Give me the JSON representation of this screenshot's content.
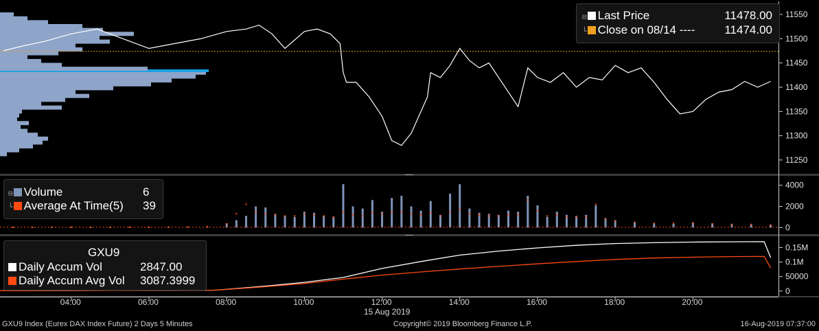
{
  "price_panel": {
    "legend": {
      "last_price_label": "Last Price",
      "last_price_value": "11478.00",
      "close_label": "Close on 08/14 ----",
      "close_value": "11474.00"
    }
  },
  "volume_panel": {
    "legend": {
      "volume_label": "Volume",
      "volume_value": "6",
      "avg_label": "Average At Time(5)",
      "avg_value": "39"
    }
  },
  "accum_panel": {
    "legend": {
      "ticker": "GXU9",
      "daily_label": "Daily Accum Vol",
      "daily_value": "2847.00",
      "avg_label": "Daily Accum Avg Vol",
      "avg_value": "3087.3999"
    }
  },
  "x_axis": {
    "ticks": [
      "04:00",
      "06:00",
      "08:00",
      "10:00",
      "12:00",
      "14:00",
      "16:00",
      "18:00",
      "20:00"
    ],
    "date_label": "15 Aug 2019"
  },
  "footer": {
    "left": "GXU9 Index (Eurex DAX Index Future) 2 Days 5 Minutes",
    "center": "Copyright© 2019 Bloomberg Finance L.P.",
    "right": "16-Aug-2019 07:37:00"
  },
  "colors": {
    "background": "#000000",
    "last_price": "#ffffff",
    "close_line": "#f0a020",
    "volume_bar": "#7f94b8",
    "average": "#ff4a12",
    "profile_bar": "#8ea4c8",
    "profile_highlight": "#1aa0e0"
  },
  "chart_data": [
    {
      "type": "line",
      "title": "Last Price",
      "x": [
        "02:15",
        "02:45",
        "03:20",
        "04:00",
        "04:40",
        "05:20",
        "06:00",
        "06:40",
        "07:20",
        "08:00",
        "08:30",
        "08:50",
        "09:10",
        "09:30",
        "10:00",
        "10:20",
        "10:40",
        "10:55",
        "11:00",
        "11:05",
        "11:20",
        "11:40",
        "12:00",
        "12:15",
        "12:30",
        "12:45",
        "13:00",
        "13:10",
        "13:15",
        "13:30",
        "13:45",
        "14:00",
        "14:15",
        "14:30",
        "14:45",
        "15:00",
        "15:15",
        "15:30",
        "15:45",
        "16:00",
        "16:20",
        "16:40",
        "17:00",
        "17:20",
        "17:40",
        "18:00",
        "18:20",
        "18:40",
        "19:00",
        "19:20",
        "19:40",
        "20:00",
        "20:20",
        "20:40",
        "21:00",
        "21:20",
        "21:40",
        "22:00"
      ],
      "series": [
        {
          "name": "Last Price",
          "values": [
            11475,
            11485,
            11495,
            11510,
            11520,
            11500,
            11480,
            11490,
            11500,
            11515,
            11520,
            11528,
            11510,
            11480,
            11515,
            11520,
            11510,
            11490,
            11430,
            11410,
            11410,
            11380,
            11340,
            11290,
            11280,
            11305,
            11350,
            11380,
            11430,
            11420,
            11445,
            11480,
            11455,
            11440,
            11450,
            11420,
            11390,
            11360,
            11440,
            11420,
            11410,
            11430,
            11400,
            11420,
            11415,
            11445,
            11430,
            11440,
            11410,
            11375,
            11345,
            11350,
            11375,
            11390,
            11395,
            11412,
            11400,
            11412
          ]
        }
      ],
      "reference_lines": [
        {
          "name": "Close on 08/14",
          "value": 11474
        }
      ],
      "ylim": [
        11240,
        11560
      ],
      "yticks": [
        11250,
        11300,
        11350,
        11400,
        11450,
        11500,
        11550
      ]
    },
    {
      "type": "bar",
      "title": "Volume",
      "x": [
        "02:00",
        "02:30",
        "03:00",
        "03:30",
        "04:00",
        "04:30",
        "05:00",
        "05:30",
        "06:00",
        "06:30",
        "07:00",
        "07:30",
        "08:00",
        "08:15",
        "08:30",
        "08:45",
        "09:00",
        "09:15",
        "09:30",
        "09:45",
        "10:00",
        "10:15",
        "10:30",
        "10:45",
        "11:00",
        "11:15",
        "11:30",
        "11:45",
        "12:00",
        "12:15",
        "12:30",
        "12:45",
        "13:00",
        "13:15",
        "13:30",
        "13:45",
        "14:00",
        "14:15",
        "14:30",
        "14:45",
        "15:00",
        "15:15",
        "15:30",
        "15:45",
        "16:00",
        "16:15",
        "16:30",
        "16:45",
        "17:00",
        "17:15",
        "17:30",
        "17:45",
        "18:00",
        "18:30",
        "19:00",
        "19:30",
        "20:00",
        "20:30",
        "21:00",
        "21:30",
        "22:00"
      ],
      "series": [
        {
          "name": "Volume",
          "values": [
            20,
            30,
            30,
            40,
            30,
            20,
            30,
            40,
            30,
            40,
            50,
            90,
            400,
            700,
            1100,
            2000,
            1900,
            1300,
            1100,
            1000,
            1500,
            1400,
            1100,
            1000,
            4100,
            2000,
            1800,
            2600,
            1500,
            2800,
            3000,
            2000,
            1600,
            2500,
            1200,
            3200,
            4100,
            1800,
            1400,
            1300,
            1200,
            1600,
            1500,
            3000,
            2100,
            1000,
            1500,
            1200,
            1100,
            1200,
            2100,
            900,
            700,
            500,
            400,
            350,
            500,
            400,
            350,
            300,
            250
          ]
        },
        {
          "name": "Average At Time(5)",
          "values": [
            20,
            30,
            30,
            40,
            40,
            30,
            30,
            40,
            30,
            40,
            50,
            100,
            350,
            1300,
            2200,
            1500,
            1300,
            1200,
            1100,
            1100,
            1300,
            1200,
            1100,
            1000,
            1500,
            1200,
            1100,
            1400,
            1300,
            1400,
            1500,
            1300,
            1200,
            1400,
            1100,
            1500,
            1700,
            1300,
            1200,
            1100,
            1100,
            1200,
            1200,
            2600,
            1600,
            1100,
            1200,
            1000,
            1000,
            1000,
            2200,
            800,
            600,
            500,
            400,
            400,
            400,
            350,
            300,
            300,
            250
          ]
        }
      ],
      "ylim": [
        -300,
        4500
      ],
      "yticks": [
        0,
        2000,
        4000
      ]
    },
    {
      "type": "line",
      "title": "GXU9",
      "x": [
        "02:00",
        "03:00",
        "04:00",
        "05:00",
        "06:00",
        "07:00",
        "07:40",
        "08:00",
        "09:00",
        "10:00",
        "11:00",
        "12:00",
        "13:00",
        "14:00",
        "15:00",
        "16:00",
        "17:00",
        "18:00",
        "19:00",
        "20:00",
        "21:00",
        "21:50",
        "22:00"
      ],
      "series": [
        {
          "name": "Daily Accum Vol",
          "values": [
            1000,
            1300,
            1600,
            2000,
            2400,
            2800,
            2847,
            6000,
            17000,
            30000,
            47000,
            78000,
            102000,
            124000,
            138000,
            149000,
            158000,
            164000,
            167000,
            169000,
            170000,
            170500,
            115000
          ]
        },
        {
          "name": "Daily Accum Avg Vol",
          "values": [
            1000,
            1300,
            1700,
            2100,
            2500,
            2900,
            3087,
            5500,
            15000,
            26000,
            41000,
            55000,
            66000,
            76000,
            85000,
            94000,
            102000,
            109000,
            114000,
            117000,
            119000,
            119500,
            80000
          ]
        }
      ],
      "ylim": [
        -10000,
        175000
      ],
      "yticks": [
        0,
        50000,
        100000,
        150000
      ]
    }
  ],
  "volume_profile": [
    {
      "price": 11262,
      "volume": 10
    },
    {
      "price": 11270,
      "volume": 28
    },
    {
      "price": 11278,
      "volume": 48
    },
    {
      "price": 11286,
      "volume": 62
    },
    {
      "price": 11294,
      "volume": 70
    },
    {
      "price": 11302,
      "volume": 55
    },
    {
      "price": 11310,
      "volume": 40
    },
    {
      "price": 11318,
      "volume": 30
    },
    {
      "price": 11326,
      "volume": 42
    },
    {
      "price": 11334,
      "volume": 25
    },
    {
      "price": 11342,
      "volume": 28
    },
    {
      "price": 11350,
      "volume": 32
    },
    {
      "price": 11358,
      "volume": 90
    },
    {
      "price": 11366,
      "volume": 60
    },
    {
      "price": 11374,
      "volume": 95
    },
    {
      "price": 11382,
      "volume": 130
    },
    {
      "price": 11390,
      "volume": 110
    },
    {
      "price": 11398,
      "volume": 165
    },
    {
      "price": 11406,
      "volume": 220
    },
    {
      "price": 11414,
      "volume": 250
    },
    {
      "price": 11422,
      "volume": 285
    },
    {
      "price": 11430,
      "volume": 300
    },
    {
      "price": 11434,
      "volume": 300,
      "highlight": true
    },
    {
      "price": 11438,
      "volume": 215
    },
    {
      "price": 11446,
      "volume": 90
    },
    {
      "price": 11454,
      "volume": 60
    },
    {
      "price": 11462,
      "volume": 40
    },
    {
      "price": 11470,
      "volume": 85
    },
    {
      "price": 11478,
      "volume": 120
    },
    {
      "price": 11486,
      "volume": 110
    },
    {
      "price": 11494,
      "volume": 160
    },
    {
      "price": 11502,
      "volume": 145
    },
    {
      "price": 11510,
      "volume": 195
    },
    {
      "price": 11518,
      "volume": 150
    },
    {
      "price": 11526,
      "volume": 120
    },
    {
      "price": 11534,
      "volume": 70
    },
    {
      "price": 11542,
      "volume": 40
    },
    {
      "price": 11550,
      "volume": 20
    }
  ]
}
